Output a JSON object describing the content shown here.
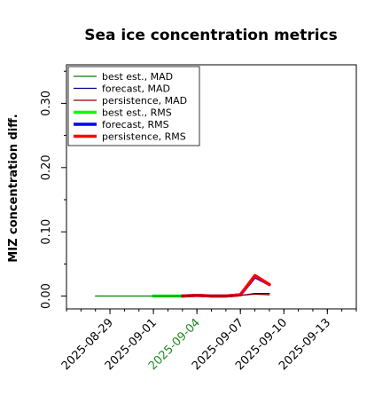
{
  "chart_data": {
    "type": "line",
    "title": "Sea ice concentration metrics",
    "ylabel": "MIZ concentration diff.",
    "xlabel": "",
    "x_type": "date",
    "xlim": [
      "2025-08-26",
      "2025-09-15"
    ],
    "ylim": [
      -0.02,
      0.36
    ],
    "yticks": [
      0.0,
      0.1,
      0.2,
      0.3
    ],
    "ytick_labels": [
      "0.00",
      "0.10",
      "0.20",
      "0.30"
    ],
    "xticks": [
      "2025-08-29",
      "2025-09-01",
      "2025-09-04",
      "2025-09-07",
      "2025-09-10",
      "2025-09-13"
    ],
    "xtick_labels": [
      "2025-08-29",
      "2025-09-01",
      "2025-09-04",
      "2025-09-07",
      "2025-09-10",
      "2025-09-13"
    ],
    "highlight_tick": "2025-09-04",
    "highlight_color": "#228B22",
    "grid": false,
    "legend_position": "top-left",
    "series": [
      {
        "name": "best est., MAD",
        "color": "#008000",
        "style": "thin",
        "x": [
          "2025-08-28",
          "2025-08-29",
          "2025-08-30",
          "2025-08-31",
          "2025-09-01",
          "2025-09-02",
          "2025-09-03"
        ],
        "y": [
          0.0,
          0.0,
          0.0,
          0.0,
          0.0,
          0.0,
          0.0
        ]
      },
      {
        "name": "forecast,  MAD",
        "color": "#00008B",
        "style": "thin",
        "x": [
          "2025-09-03",
          "2025-09-04",
          "2025-09-05",
          "2025-09-06",
          "2025-09-07",
          "2025-09-08",
          "2025-09-09"
        ],
        "y": [
          0.0,
          0.001,
          0.0,
          0.0,
          0.001,
          0.004,
          0.004
        ]
      },
      {
        "name": "persistence, MAD",
        "color": "#8B0000",
        "style": "thin",
        "x": [
          "2025-09-03",
          "2025-09-04",
          "2025-09-05",
          "2025-09-06",
          "2025-09-07",
          "2025-09-08",
          "2025-09-09"
        ],
        "y": [
          0.0,
          0.001,
          0.0,
          0.0,
          0.001,
          0.003,
          0.002
        ]
      },
      {
        "name": "best est., RMS",
        "color": "#00FF00",
        "style": "thick",
        "x": [
          "2025-09-01",
          "2025-09-02",
          "2025-09-03"
        ],
        "y": [
          0.0,
          0.0,
          0.0
        ]
      },
      {
        "name": "forecast,  RMS",
        "color": "#0000FF",
        "style": "thick",
        "x": [
          "2025-09-03",
          "2025-09-04",
          "2025-09-05",
          "2025-09-06",
          "2025-09-07",
          "2025-09-08",
          "2025-09-09"
        ],
        "y": [
          0.0,
          0.001,
          0.0,
          0.0,
          0.002,
          0.03,
          0.018
        ]
      },
      {
        "name": "persistence, RMS",
        "color": "#FF0000",
        "style": "thick",
        "x": [
          "2025-09-03",
          "2025-09-04",
          "2025-09-05",
          "2025-09-06",
          "2025-09-07",
          "2025-09-08",
          "2025-09-09"
        ],
        "y": [
          0.0,
          0.001,
          0.0,
          0.0,
          0.002,
          0.032,
          0.018
        ]
      }
    ]
  }
}
